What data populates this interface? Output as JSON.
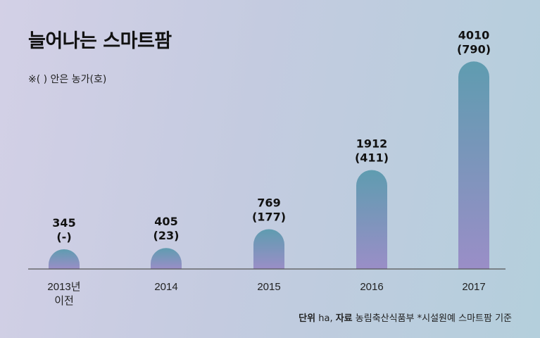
{
  "title": "늘어나는 스마트팜",
  "note": "※(  ) 안은 농가(호)",
  "footer": {
    "unit_label": "단위",
    "unit_value": "ha,",
    "source_label": "자료",
    "source_value": "농림축산식품부 *시설원예 스마트팜 기준"
  },
  "colors": {
    "bar_top": "#5f9cb0",
    "bar_bottom": "#9a8ec7",
    "axis": "#555555"
  },
  "chart_data": {
    "type": "bar",
    "title": "늘어나는 스마트팜",
    "categories": [
      [
        "2013년",
        "이전"
      ],
      [
        "2014"
      ],
      [
        "2015"
      ],
      [
        "2016"
      ],
      [
        "2017"
      ]
    ],
    "values": [
      345,
      405,
      769,
      1912,
      4010
    ],
    "secondary_labels": [
      "(-)",
      "(23)",
      "(177)",
      "(411)",
      "(790)"
    ],
    "ylim": [
      0,
      4300
    ],
    "grid": false
  }
}
